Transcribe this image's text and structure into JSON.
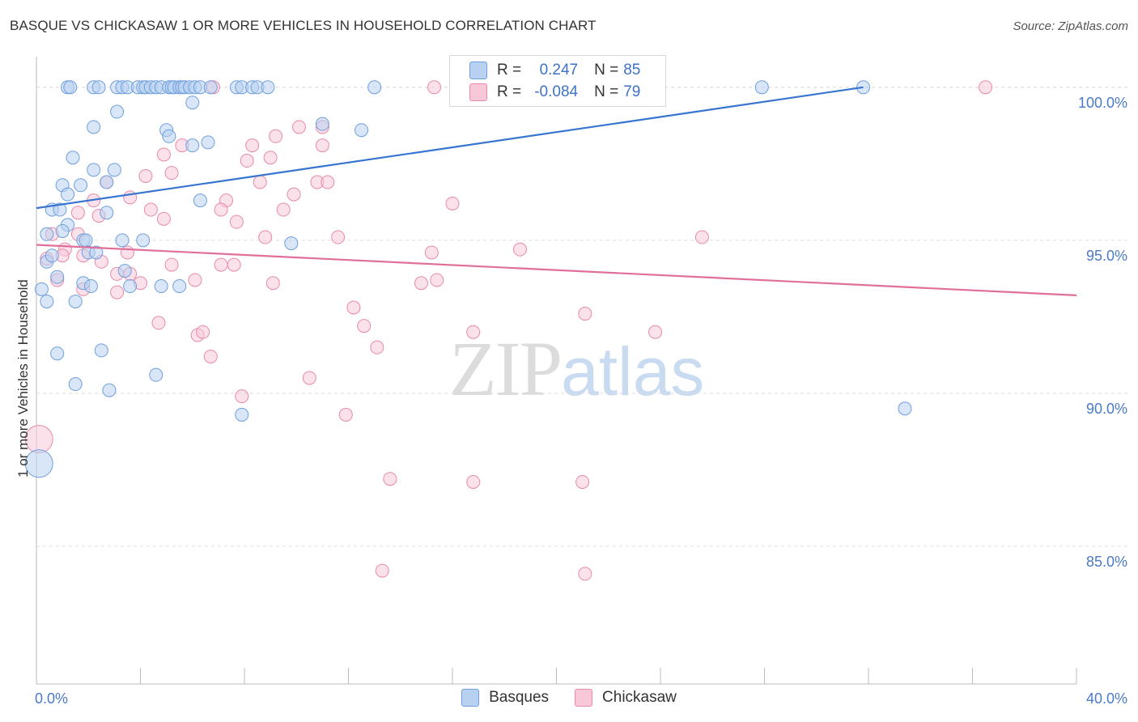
{
  "title": "BASQUE VS CHICKASAW 1 OR MORE VEHICLES IN HOUSEHOLD CORRELATION CHART",
  "source": "Source: ZipAtlas.com",
  "watermark": {
    "zip": "ZIP",
    "atlas": "atlas"
  },
  "legend": {
    "rows": [
      {
        "r_label": "R =",
        "r_value": "0.247",
        "n_label": "N =",
        "n_value": "85"
      },
      {
        "r_label": "R =",
        "r_value": "-0.084",
        "n_label": "N =",
        "n_value": "79"
      }
    ]
  },
  "colors": {
    "basques_fill": "#b8d1f0",
    "basques_stroke": "#6f9fdc",
    "basques_line": "#3875d0",
    "chickasaw_fill": "#f8c8d8",
    "chickasaw_stroke": "#e88aaa",
    "chickasaw_line": "#e0709a",
    "grid": "#dddddd",
    "tick_text": "#4a7ac8"
  },
  "chart_data": {
    "type": "scatter",
    "title": "BASQUE VS CHICKASAW 1 OR MORE VEHICLES IN HOUSEHOLD CORRELATION CHART",
    "xlabel": "",
    "ylabel": "1 or more Vehicles in Household",
    "xlim": [
      0,
      40
    ],
    "ylim": [
      80.5,
      101.0
    ],
    "x_tick_labels": [
      "0.0%",
      "40.0%"
    ],
    "y_ticks": [
      100,
      95,
      90,
      85
    ],
    "y_tick_labels": [
      "100.0%",
      "95.0%",
      "90.0%",
      "85.0%"
    ],
    "grid": "horizontal dashed",
    "legend_position": "top-center",
    "series": [
      {
        "name": "Basques",
        "r": 0.247,
        "n": 85,
        "trend": [
          [
            0,
            96.05
          ],
          [
            31.8,
            100.0
          ]
        ],
        "points": [
          [
            1.2,
            100
          ],
          [
            1.3,
            100
          ],
          [
            2.2,
            100
          ],
          [
            2.4,
            100
          ],
          [
            3.1,
            100
          ],
          [
            3.3,
            100
          ],
          [
            3.5,
            100
          ],
          [
            3.9,
            100
          ],
          [
            4.1,
            100
          ],
          [
            4.2,
            100
          ],
          [
            4.4,
            100
          ],
          [
            4.6,
            100
          ],
          [
            4.8,
            100
          ],
          [
            5.1,
            100
          ],
          [
            5.2,
            100
          ],
          [
            5.3,
            100
          ],
          [
            5.5,
            100
          ],
          [
            5.6,
            100
          ],
          [
            5.7,
            100
          ],
          [
            5.9,
            100
          ],
          [
            6.1,
            100
          ],
          [
            6.3,
            100
          ],
          [
            6.7,
            100
          ],
          [
            7.7,
            100
          ],
          [
            7.9,
            100
          ],
          [
            8.3,
            100
          ],
          [
            8.5,
            100
          ],
          [
            8.9,
            100
          ],
          [
            13.0,
            100
          ],
          [
            27.9,
            100
          ],
          [
            31.8,
            100
          ],
          [
            6.0,
            99.5
          ],
          [
            3.1,
            99.2
          ],
          [
            2.2,
            98.7
          ],
          [
            5.0,
            98.6
          ],
          [
            11.0,
            98.8
          ],
          [
            12.5,
            98.6
          ],
          [
            5.1,
            98.4
          ],
          [
            6.6,
            98.2
          ],
          [
            6.0,
            98.1
          ],
          [
            1.4,
            97.7
          ],
          [
            2.2,
            97.3
          ],
          [
            3.0,
            97.3
          ],
          [
            1.0,
            96.8
          ],
          [
            1.7,
            96.8
          ],
          [
            1.2,
            96.5
          ],
          [
            0.6,
            96.0
          ],
          [
            0.9,
            96.0
          ],
          [
            2.7,
            96.9
          ],
          [
            6.3,
            96.3
          ],
          [
            2.7,
            95.9
          ],
          [
            1.2,
            95.5
          ],
          [
            0.4,
            95.2
          ],
          [
            1.0,
            95.3
          ],
          [
            1.8,
            95.0
          ],
          [
            3.3,
            95.0
          ],
          [
            4.1,
            95.0
          ],
          [
            9.8,
            94.9
          ],
          [
            1.9,
            95.0
          ],
          [
            0.4,
            94.3
          ],
          [
            0.6,
            94.5
          ],
          [
            2.0,
            94.6
          ],
          [
            2.3,
            94.6
          ],
          [
            3.4,
            94.0
          ],
          [
            0.8,
            93.8
          ],
          [
            1.8,
            93.6
          ],
          [
            2.1,
            93.5
          ],
          [
            3.6,
            93.5
          ],
          [
            4.8,
            93.5
          ],
          [
            5.5,
            93.5
          ],
          [
            0.2,
            93.4
          ],
          [
            0.4,
            93.0
          ],
          [
            1.5,
            93.0
          ],
          [
            0.8,
            91.3
          ],
          [
            2.5,
            91.4
          ],
          [
            1.5,
            90.3
          ],
          [
            2.8,
            90.1
          ],
          [
            4.6,
            90.6
          ],
          [
            7.9,
            89.3
          ],
          [
            33.4,
            89.5
          ],
          [
            0.1,
            87.7
          ]
        ]
      },
      {
        "name": "Chickasaw",
        "r": -0.084,
        "n": 79,
        "trend": [
          [
            0,
            94.85
          ],
          [
            40,
            93.2
          ]
        ],
        "points": [
          [
            6.8,
            100
          ],
          [
            15.3,
            100
          ],
          [
            36.5,
            100
          ],
          [
            9.2,
            98.4
          ],
          [
            10.1,
            98.7
          ],
          [
            11.0,
            98.7
          ],
          [
            8.3,
            98.1
          ],
          [
            11.0,
            98.1
          ],
          [
            4.9,
            97.8
          ],
          [
            5.6,
            98.1
          ],
          [
            8.1,
            97.6
          ],
          [
            9.0,
            97.7
          ],
          [
            4.2,
            97.1
          ],
          [
            5.2,
            97.2
          ],
          [
            8.6,
            96.9
          ],
          [
            10.8,
            96.9
          ],
          [
            11.2,
            96.9
          ],
          [
            2.7,
            96.9
          ],
          [
            2.2,
            96.3
          ],
          [
            3.6,
            96.4
          ],
          [
            7.3,
            96.3
          ],
          [
            9.9,
            96.5
          ],
          [
            16.0,
            96.2
          ],
          [
            1.6,
            95.9
          ],
          [
            4.4,
            96.0
          ],
          [
            7.1,
            96.0
          ],
          [
            9.5,
            96.0
          ],
          [
            2.4,
            95.8
          ],
          [
            4.9,
            95.7
          ],
          [
            7.7,
            95.6
          ],
          [
            0.6,
            95.2
          ],
          [
            1.6,
            95.2
          ],
          [
            8.8,
            95.1
          ],
          [
            11.6,
            95.1
          ],
          [
            25.6,
            95.1
          ],
          [
            1.1,
            94.7
          ],
          [
            3.5,
            94.6
          ],
          [
            15.2,
            94.6
          ],
          [
            18.6,
            94.7
          ],
          [
            0.4,
            94.4
          ],
          [
            1.0,
            94.5
          ],
          [
            1.8,
            94.5
          ],
          [
            2.5,
            94.3
          ],
          [
            5.2,
            94.2
          ],
          [
            7.1,
            94.2
          ],
          [
            7.6,
            94.2
          ],
          [
            3.1,
            93.9
          ],
          [
            3.6,
            93.9
          ],
          [
            0.8,
            93.7
          ],
          [
            4.0,
            93.6
          ],
          [
            6.1,
            93.7
          ],
          [
            9.1,
            93.6
          ],
          [
            14.8,
            93.6
          ],
          [
            15.4,
            93.7
          ],
          [
            1.8,
            93.4
          ],
          [
            3.1,
            93.3
          ],
          [
            12.2,
            92.8
          ],
          [
            4.7,
            92.3
          ],
          [
            12.6,
            92.2
          ],
          [
            21.1,
            92.6
          ],
          [
            6.2,
            91.9
          ],
          [
            6.4,
            92.0
          ],
          [
            16.8,
            92.0
          ],
          [
            23.8,
            92.0
          ],
          [
            6.7,
            91.2
          ],
          [
            13.1,
            91.5
          ],
          [
            10.5,
            90.5
          ],
          [
            7.9,
            89.9
          ],
          [
            11.9,
            89.3
          ],
          [
            0.1,
            88.5
          ],
          [
            13.6,
            87.2
          ],
          [
            16.8,
            87.1
          ],
          [
            21.0,
            87.1
          ],
          [
            13.3,
            84.2
          ],
          [
            21.1,
            84.1
          ]
        ]
      }
    ]
  },
  "bottom_legend": [
    "Basques",
    "Chickasaw"
  ]
}
